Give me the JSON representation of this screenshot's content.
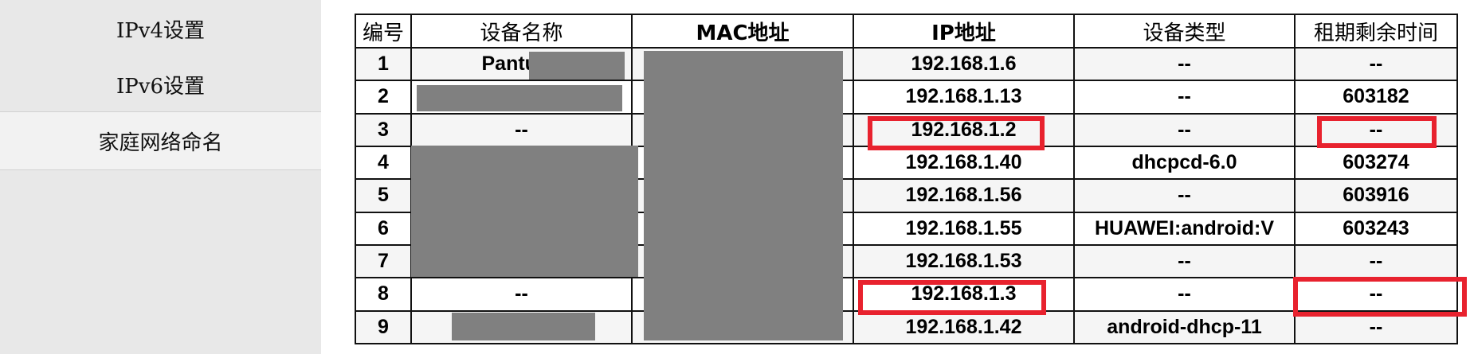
{
  "sidebar": {
    "items": [
      {
        "label": "IPv4设置"
      },
      {
        "label": "IPv6设置"
      },
      {
        "label": "家庭网络命名"
      }
    ]
  },
  "table": {
    "headers": [
      "编号",
      "设备名称",
      "MAC地址",
      "IP地址",
      "设备类型",
      "租期剩余时间"
    ],
    "rows": [
      {
        "no": "1",
        "name": "Pantum-",
        "mac": "",
        "ip": "192.168.1.6",
        "type": "--",
        "lease": "--"
      },
      {
        "no": "2",
        "name": "",
        "mac": "",
        "ip": "192.168.1.13",
        "type": "--",
        "lease": "603182"
      },
      {
        "no": "3",
        "name": "--",
        "mac": "",
        "ip": "192.168.1.2",
        "type": "--",
        "lease": "--"
      },
      {
        "no": "4",
        "name": "",
        "mac": "",
        "ip": "192.168.1.40",
        "type": "dhcpcd-6.0",
        "lease": "603274"
      },
      {
        "no": "5",
        "name": "",
        "mac": "",
        "ip": "192.168.1.56",
        "type": "--",
        "lease": "603916"
      },
      {
        "no": "6",
        "name": "",
        "mac": "",
        "ip": "192.168.1.55",
        "type": "HUAWEI:android:V",
        "lease": "603243"
      },
      {
        "no": "7",
        "name": "",
        "mac": "",
        "ip": "192.168.1.53",
        "type": "--",
        "lease": "--"
      },
      {
        "no": "8",
        "name": "--",
        "mac": "",
        "ip": "192.168.1.3",
        "type": "--",
        "lease": "--"
      },
      {
        "no": "9",
        "name": "",
        "mac": "",
        "ip": "192.168.1.42",
        "type": "android-dhcp-11",
        "lease": "--"
      }
    ]
  },
  "colors": {
    "highlight": "#e8222e",
    "redaction": "#808080"
  }
}
